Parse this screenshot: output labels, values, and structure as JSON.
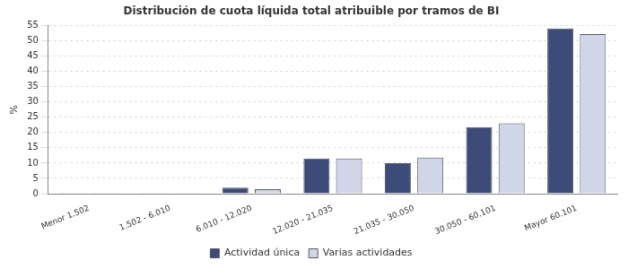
{
  "chart_data": {
    "type": "bar",
    "title": "Distribución de cuota líquida total atribuible por tramos de BI",
    "y_label": "%",
    "categories": [
      "Menor 1.502",
      "1.502 - 6.010",
      "6.010 - 12.020",
      "12.020 - 21.035",
      "21.035 - 30.050",
      "30.050 - 60.101",
      "Mayor 60.101"
    ],
    "series": [
      {
        "name": "Actividad única",
        "color": "#3d4b78",
        "values": [
          0.1,
          0.1,
          2.0,
          11.5,
          10.0,
          21.8,
          54.0
        ]
      },
      {
        "name": "Varias actividades",
        "color": "#d0d5e8",
        "values": [
          0.1,
          0.1,
          1.5,
          11.5,
          11.8,
          23.0,
          52.2
        ]
      }
    ],
    "ylim": [
      0,
      55
    ],
    "yticks": [
      0,
      5,
      10,
      15,
      20,
      25,
      30,
      35,
      40,
      45,
      50,
      55
    ],
    "grid": true,
    "legend": "bottom"
  }
}
